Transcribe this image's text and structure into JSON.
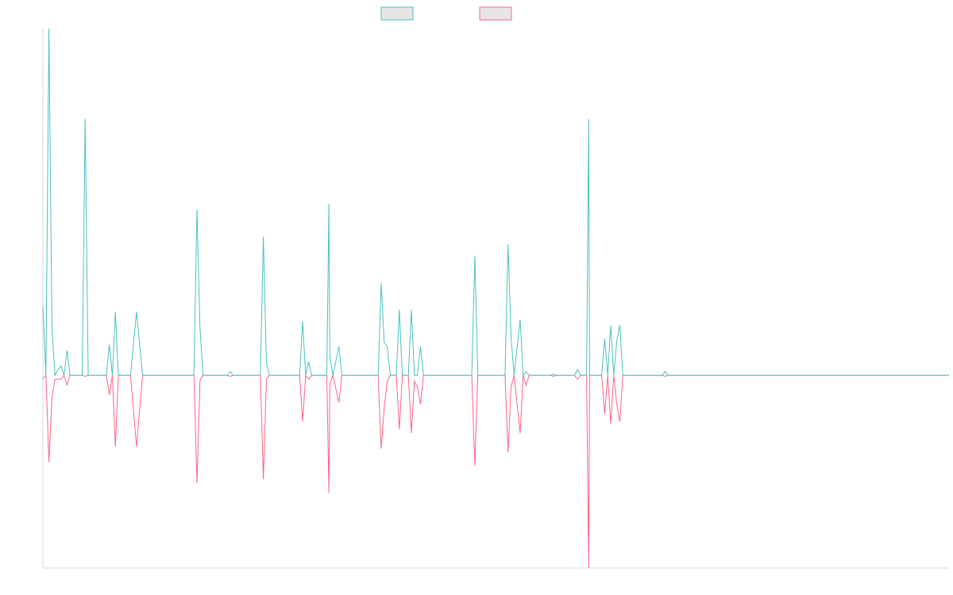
{
  "chart_data": {
    "type": "line",
    "title": "",
    "xlabel": "",
    "ylabel": "",
    "legend_position": "top-center",
    "grid": false,
    "x_range": [
      0,
      300
    ],
    "ylim": [
      -1.0,
      1.8
    ],
    "series": [
      {
        "color": "#4bc0c0",
        "points": [
          [
            0,
            0.36
          ],
          [
            1,
            0.0
          ],
          [
            2,
            1.8
          ],
          [
            3,
            0.25
          ],
          [
            4,
            0.0
          ],
          [
            5,
            0.03
          ],
          [
            6,
            0.05
          ],
          [
            7,
            0.0
          ],
          [
            8,
            0.13
          ],
          [
            9,
            0.0
          ],
          [
            13,
            0.0
          ],
          [
            14,
            1.33
          ],
          [
            15,
            0.0
          ],
          [
            21,
            0.0
          ],
          [
            22,
            0.16
          ],
          [
            23,
            0.0
          ],
          [
            24,
            0.33
          ],
          [
            25,
            0.0
          ],
          [
            29,
            0.0
          ],
          [
            31,
            0.33
          ],
          [
            33,
            0.0
          ],
          [
            50,
            0.0
          ],
          [
            51,
            0.86
          ],
          [
            52,
            0.25
          ],
          [
            53,
            0.0
          ],
          [
            61,
            0.0
          ],
          [
            62,
            0.02
          ],
          [
            63,
            0.0
          ],
          [
            72,
            0.0
          ],
          [
            73,
            0.72
          ],
          [
            74,
            0.06
          ],
          [
            75,
            0.0
          ],
          [
            85,
            0.0
          ],
          [
            86,
            0.28
          ],
          [
            87,
            0.0
          ],
          [
            88,
            0.07
          ],
          [
            89,
            0.0
          ],
          [
            94,
            0.0
          ],
          [
            94.7,
            0.89
          ],
          [
            95,
            0.1
          ],
          [
            96,
            0.0
          ],
          [
            98,
            0.15
          ],
          [
            99,
            0.0
          ],
          [
            111,
            0.0
          ],
          [
            112,
            0.48
          ],
          [
            113,
            0.17
          ],
          [
            114,
            0.15
          ],
          [
            115,
            0.0
          ],
          [
            117,
            0.0
          ],
          [
            118,
            0.34
          ],
          [
            119,
            0.0
          ],
          [
            121,
            0.0
          ],
          [
            122,
            0.34
          ],
          [
            123,
            0.0
          ],
          [
            124,
            0.0
          ],
          [
            125,
            0.15
          ],
          [
            126,
            0.0
          ],
          [
            142,
            0.0
          ],
          [
            143,
            0.62
          ],
          [
            144,
            0.0
          ],
          [
            153,
            0.0
          ],
          [
            154,
            0.68
          ],
          [
            155,
            0.2
          ],
          [
            156,
            0.0
          ],
          [
            158,
            0.29
          ],
          [
            159,
            0.0
          ],
          [
            160,
            0.02
          ],
          [
            161,
            0.0
          ],
          [
            168,
            0.0
          ],
          [
            169,
            0.005
          ],
          [
            170,
            0.0
          ],
          [
            176,
            0.0
          ],
          [
            177,
            0.03
          ],
          [
            178,
            0.0
          ],
          [
            180,
            0.0
          ],
          [
            180.7,
            1.33
          ],
          [
            181,
            0.0
          ],
          [
            185,
            0.0
          ],
          [
            186,
            0.19
          ],
          [
            187,
            0.0
          ],
          [
            188,
            0.26
          ],
          [
            189,
            0.0
          ],
          [
            190,
            0.18
          ],
          [
            191,
            0.26
          ],
          [
            192,
            0.0
          ],
          [
            205,
            0.0
          ],
          [
            206,
            0.02
          ],
          [
            207,
            0.0
          ],
          [
            300,
            0.0
          ]
        ]
      },
      {
        "color": "#ff6384",
        "points": [
          [
            0,
            -0.02
          ],
          [
            1,
            0.0
          ],
          [
            2,
            -0.45
          ],
          [
            3,
            -0.12
          ],
          [
            4,
            -0.02
          ],
          [
            5,
            -0.02
          ],
          [
            6,
            -0.02
          ],
          [
            7,
            0.0
          ],
          [
            8,
            -0.05
          ],
          [
            9,
            0.0
          ],
          [
            13,
            0.0
          ],
          [
            14,
            -0.005
          ],
          [
            15,
            0.0
          ],
          [
            21,
            0.0
          ],
          [
            22,
            -0.1
          ],
          [
            23,
            0.0
          ],
          [
            24,
            -0.37
          ],
          [
            25,
            0.0
          ],
          [
            29,
            0.0
          ],
          [
            31,
            -0.37
          ],
          [
            33,
            0.0
          ],
          [
            50,
            0.0
          ],
          [
            51,
            -0.56
          ],
          [
            52,
            -0.03
          ],
          [
            53,
            0.0
          ],
          [
            61,
            0.0
          ],
          [
            62,
            -0.005
          ],
          [
            63,
            0.0
          ],
          [
            72,
            0.0
          ],
          [
            73,
            -0.54
          ],
          [
            74,
            -0.02
          ],
          [
            75,
            0.0
          ],
          [
            85,
            0.0
          ],
          [
            86,
            -0.24
          ],
          [
            87,
            0.0
          ],
          [
            88,
            -0.02
          ],
          [
            89,
            0.0
          ],
          [
            94,
            0.0
          ],
          [
            94.7,
            -0.61
          ],
          [
            95,
            -0.04
          ],
          [
            96,
            0.0
          ],
          [
            98,
            -0.14
          ],
          [
            99,
            0.0
          ],
          [
            111,
            0.0
          ],
          [
            112,
            -0.38
          ],
          [
            113,
            -0.17
          ],
          [
            114,
            -0.03
          ],
          [
            115,
            0.0
          ],
          [
            117,
            0.0
          ],
          [
            118,
            -0.28
          ],
          [
            119,
            0.0
          ],
          [
            121,
            0.0
          ],
          [
            122,
            -0.3
          ],
          [
            123,
            -0.03
          ],
          [
            124,
            -0.06
          ],
          [
            125,
            -0.15
          ],
          [
            126,
            0.0
          ],
          [
            142,
            0.0
          ],
          [
            143,
            -0.47
          ],
          [
            144,
            0.0
          ],
          [
            153,
            0.0
          ],
          [
            154,
            -0.4
          ],
          [
            155,
            -0.06
          ],
          [
            156,
            0.0
          ],
          [
            158,
            -0.3
          ],
          [
            159,
            0.0
          ],
          [
            160,
            -0.05
          ],
          [
            161,
            0.0
          ],
          [
            168,
            0.0
          ],
          [
            169,
            -0.005
          ],
          [
            170,
            0.0
          ],
          [
            176,
            0.0
          ],
          [
            177,
            -0.02
          ],
          [
            178,
            0.0
          ],
          [
            180,
            0.0
          ],
          [
            180.7,
            -1.0
          ],
          [
            181,
            0.0
          ],
          [
            185,
            0.0
          ],
          [
            186,
            -0.2
          ],
          [
            187,
            0.0
          ],
          [
            188,
            -0.25
          ],
          [
            189,
            0.0
          ],
          [
            190,
            -0.15
          ],
          [
            191,
            -0.24
          ],
          [
            192,
            0.0
          ],
          [
            205,
            0.0
          ],
          [
            206,
            -0.005
          ],
          [
            207,
            0.0
          ],
          [
            300,
            0.0
          ]
        ]
      }
    ]
  }
}
